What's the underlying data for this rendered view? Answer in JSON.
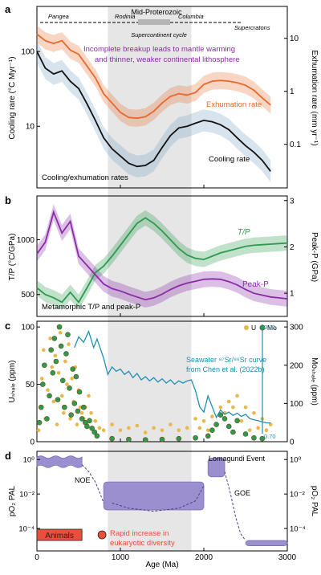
{
  "figure": {
    "x_axis": {
      "label": "Age (Ma)",
      "ticks": [
        0,
        1000,
        2000,
        3000
      ],
      "range": [
        0,
        3000
      ]
    },
    "shade": {
      "x0": 850,
      "x1": 1850,
      "color": "#e6e6e6"
    },
    "colors": {
      "orange": "#e8692a",
      "black": "#111111",
      "green": "#2e9a4f",
      "purple": "#8a2ca8",
      "teal": "#1f8fb5",
      "yellow": "#e8b84a",
      "seal": "#9c8fd0",
      "red": "#e8503a"
    }
  },
  "chart_data": [
    {
      "panel": "a",
      "type": "line",
      "title": "Cooling/exhumation rates",
      "ylabel_left": "Cooling rare (°C Myr⁻¹)",
      "ylabel_right": "Exhumation rare (mm yr⁻¹)",
      "y_scale": "log",
      "ylim_left": [
        1.5,
        400
      ],
      "ylim_right": [
        0.015,
        40
      ],
      "yticks_left": [
        "100",
        "10"
      ],
      "yticks_right": [
        "10",
        "1",
        "0.1"
      ],
      "annotation": "Incomplete breakup leads to mantle warming and thinner, weaker continental lithosphere",
      "top_bar": {
        "header": "Mid-Proterozoic",
        "labels": [
          "Pangea",
          "Rodinia",
          "Columbia",
          "Supercratons"
        ],
        "caption": "Supercontinent cycle"
      },
      "series": [
        {
          "name": "Exhumation rate",
          "axis": "right",
          "x": [
            0,
            100,
            200,
            300,
            400,
            500,
            600,
            700,
            800,
            900,
            1000,
            1100,
            1200,
            1300,
            1400,
            1500,
            1600,
            1700,
            1800,
            1900,
            2000,
            2100,
            2200,
            2300,
            2400,
            2500,
            2600,
            2700,
            2800
          ],
          "y": [
            12,
            9,
            8,
            9,
            6,
            5,
            3,
            1.8,
            0.9,
            0.6,
            0.4,
            0.32,
            0.31,
            0.33,
            0.42,
            0.6,
            0.8,
            0.9,
            0.85,
            0.95,
            1.35,
            1.55,
            1.6,
            1.55,
            1.45,
            1.3,
            1.05,
            0.75,
            0.55
          ]
        },
        {
          "name": "Cooling rate",
          "axis": "left",
          "x": [
            0,
            100,
            200,
            300,
            400,
            500,
            600,
            700,
            800,
            900,
            1000,
            1100,
            1200,
            1300,
            1400,
            1500,
            1600,
            1700,
            1800,
            1900,
            2000,
            2100,
            2200,
            2300,
            2400,
            2500,
            2600,
            2700,
            2800
          ],
          "y": [
            100,
            60,
            50,
            55,
            40,
            32,
            20,
            12,
            7,
            5,
            4,
            3.2,
            2.9,
            3.0,
            3.5,
            5.2,
            7.5,
            9.5,
            10,
            11,
            12,
            11.5,
            10.5,
            9,
            7,
            5.5,
            4.5,
            3.5,
            2.5
          ]
        }
      ]
    },
    {
      "panel": "b",
      "type": "line",
      "title": "Metamorphic T/P and peak-P",
      "ylabel_left": "T/P (°C/GPa)",
      "ylabel_right": "Peak-P (GPa)",
      "ylim_left": [
        300,
        1400
      ],
      "ylim_right": [
        0.5,
        3.1
      ],
      "yticks_left": [
        500,
        1000
      ],
      "yticks_right": [
        1,
        2,
        3
      ],
      "series": [
        {
          "name": "T/P",
          "axis": "left",
          "x": [
            0,
            100,
            200,
            300,
            400,
            500,
            600,
            700,
            800,
            900,
            1000,
            1100,
            1200,
            1300,
            1400,
            1500,
            1600,
            1700,
            1800,
            1900,
            2000,
            2100,
            2200,
            2300,
            2400,
            2500,
            2600,
            2700,
            2800,
            2900,
            3000
          ],
          "y": [
            560,
            500,
            470,
            430,
            520,
            430,
            560,
            700,
            760,
            850,
            950,
            1050,
            1150,
            1200,
            1150,
            1080,
            1000,
            920,
            860,
            830,
            820,
            850,
            880,
            900,
            920,
            940,
            950,
            955,
            960,
            965,
            970
          ]
        },
        {
          "name": "Peak-P",
          "axis": "right",
          "x": [
            0,
            100,
            200,
            300,
            400,
            500,
            600,
            700,
            800,
            900,
            1000,
            1100,
            1200,
            1300,
            1400,
            1500,
            1600,
            1700,
            1800,
            1900,
            2000,
            2100,
            2200,
            2300,
            2400,
            2500,
            2600,
            2700,
            2800,
            2900,
            3000
          ],
          "y": [
            1.85,
            2.1,
            2.75,
            2.3,
            2.55,
            1.8,
            1.6,
            1.4,
            1.2,
            1.1,
            1.05,
            0.98,
            0.92,
            0.86,
            0.9,
            0.98,
            1.08,
            1.16,
            1.22,
            1.26,
            1.3,
            1.31,
            1.3,
            1.25,
            1.18,
            1.08,
            1.0,
            0.96,
            0.92,
            0.9,
            0.88
          ]
        }
      ]
    },
    {
      "panel": "c",
      "type": "scatter",
      "ylabel_left": "Uₛₕₐₗₑ (ppm)",
      "ylabel_right": "Moₛₕₐₗₑ (ppm)",
      "ylim_left": [
        0,
        105
      ],
      "ylim_right": [
        0,
        315
      ],
      "yticks_left": [
        0,
        50,
        100
      ],
      "yticks_right": [
        0,
        100,
        200,
        300
      ],
      "legend": [
        "U",
        "Mo"
      ],
      "legend_position": "top-right",
      "annotation": "Seawater ⁸⁷Sr/⁸⁶Sr curve from Chen et al. (2022b)",
      "sr_axis_labels": [
        "0.71",
        "0.70"
      ],
      "sr_curve": {
        "name": "Seawater Sr",
        "x": [
          450,
          500,
          560,
          620,
          680,
          720,
          800,
          850,
          900,
          950,
          1000,
          1050,
          1100,
          1150,
          1200,
          1250,
          1300,
          1350,
          1400,
          1450,
          1500,
          1550,
          1600,
          1650,
          1700,
          1750,
          1800,
          1850,
          1900,
          1950,
          2000,
          2050,
          2100,
          2150,
          2200,
          2250,
          2300,
          2350,
          2400,
          2450,
          2500,
          2550,
          2600,
          2650,
          2700,
          2750,
          2800
        ],
        "y": [
          0.708,
          0.709,
          0.7085,
          0.7095,
          0.708,
          0.7088,
          0.707,
          0.7055,
          0.7062,
          0.7058,
          0.706,
          0.7055,
          0.7058,
          0.7052,
          0.7056,
          0.705,
          0.7053,
          0.7049,
          0.7052,
          0.7048,
          0.7051,
          0.7047,
          0.705,
          0.7046,
          0.7049,
          0.7047,
          0.7049,
          0.705,
          0.704,
          0.7025,
          0.702,
          0.7035,
          0.7025,
          0.7015,
          0.7022,
          0.7018,
          0.702,
          0.7017,
          0.7019,
          0.7016,
          0.7018,
          0.7014,
          0.7013,
          0.7012,
          0.7011,
          0.701,
          0.701
        ]
      },
      "sr_range": [
        0.7,
        0.71
      ],
      "series": [
        {
          "name": "U",
          "x": [
            20,
            40,
            60,
            80,
            100,
            130,
            160,
            180,
            200,
            220,
            240,
            260,
            280,
            300,
            320,
            340,
            360,
            380,
            400,
            420,
            440,
            460,
            480,
            500,
            520,
            540,
            560,
            580,
            600,
            620,
            650,
            700,
            750,
            800,
            900,
            1000,
            1100,
            1200,
            1300,
            1400,
            1500,
            1600,
            1700,
            1800,
            1900,
            1950,
            2000,
            2050,
            2100,
            2150,
            2200,
            2250,
            2300,
            2350,
            2400,
            2450,
            2500,
            2550,
            2600,
            2650,
            2700,
            2750,
            2800
          ],
          "y": [
            10,
            30,
            55,
            80,
            20,
            45,
            90,
            65,
            35,
            75,
            15,
            60,
            95,
            40,
            25,
            70,
            50,
            85,
            20,
            55,
            35,
            65,
            15,
            45,
            30,
            25,
            20,
            30,
            15,
            40,
            25,
            18,
            12,
            10,
            15,
            10,
            12,
            14,
            8,
            12,
            10,
            15,
            10,
            12,
            20,
            12,
            18,
            10,
            22,
            15,
            30,
            25,
            35,
            30,
            40,
            18,
            30,
            10,
            25,
            12,
            20,
            10,
            15
          ]
        },
        {
          "name": "Mo",
          "x": [
            30,
            50,
            70,
            90,
            120,
            150,
            170,
            190,
            210,
            230,
            250,
            270,
            290,
            310,
            330,
            350,
            370,
            390,
            410,
            430,
            450,
            470,
            490,
            510,
            540,
            560,
            580,
            600,
            630,
            660,
            690,
            720,
            900,
            1100,
            1300,
            1500,
            1700,
            1900,
            2050,
            2100,
            2150,
            2200,
            2250,
            2300,
            2350,
            2400,
            2500,
            2600,
            2700
          ],
          "y": [
            50,
            90,
            150,
            200,
            60,
            120,
            240,
            180,
            270,
            210,
            110,
            300,
            250,
            160,
            90,
            230,
            280,
            140,
            70,
            190,
            100,
            170,
            80,
            130,
            60,
            90,
            50,
            40,
            55,
            35,
            25,
            15,
            8,
            6,
            5,
            6,
            8,
            10,
            15,
            30,
            45,
            70,
            60,
            40,
            25,
            55,
            20,
            10,
            8
          ]
        }
      ]
    },
    {
      "panel": "d",
      "type": "area",
      "ylabel_left": "pO₂ PAL",
      "ylabel_right": "pO₂ PAL",
      "y_scale": "log",
      "ylim": [
        5e-06,
        3
      ],
      "yticks": [
        "10⁰",
        "10⁻²",
        "10⁻⁴"
      ],
      "events": [
        "NOE",
        "GOE",
        "Lomagundi Event"
      ],
      "annotation": "Rapid increase in eukaryotic diversity",
      "animals_label": "Animals",
      "boxes": [
        {
          "name": "Phanerozoic",
          "x0": 0,
          "x1": 540,
          "y_low": 0.4,
          "y_high": 1.4,
          "wavy": true
        },
        {
          "name": "Mid-Proterozoic",
          "x0": 800,
          "x1": 2000,
          "y_low": 0.0012,
          "y_high": 0.05
        },
        {
          "name": "Lomagundi",
          "x0": 2050,
          "x1": 2250,
          "y_low": 0.1,
          "y_high": 1.2
        },
        {
          "name": "Archean",
          "x0": 2500,
          "x1": 3000,
          "y_low": 1e-05,
          "y_high": 2e-05
        }
      ],
      "dashed_curves": [
        {
          "x": [
            540,
            620,
            700,
            760,
            800
          ],
          "y": [
            0.5,
            0.2,
            0.05,
            0.01,
            0.003
          ]
        },
        {
          "x": [
            900,
            1100,
            1400,
            1700,
            1900,
            2000
          ],
          "y": [
            0.003,
            0.0015,
            0.001,
            0.0015,
            0.004,
            0.03
          ]
        },
        {
          "x": [
            2250,
            2320,
            2380,
            2440,
            2500
          ],
          "y": [
            0.2,
            0.01,
            0.0005,
            5e-05,
            2e-05
          ]
        }
      ],
      "animals_bar": {
        "x0": 0,
        "x1": 540
      },
      "eukaryote_point": {
        "x": 780
      }
    }
  ]
}
